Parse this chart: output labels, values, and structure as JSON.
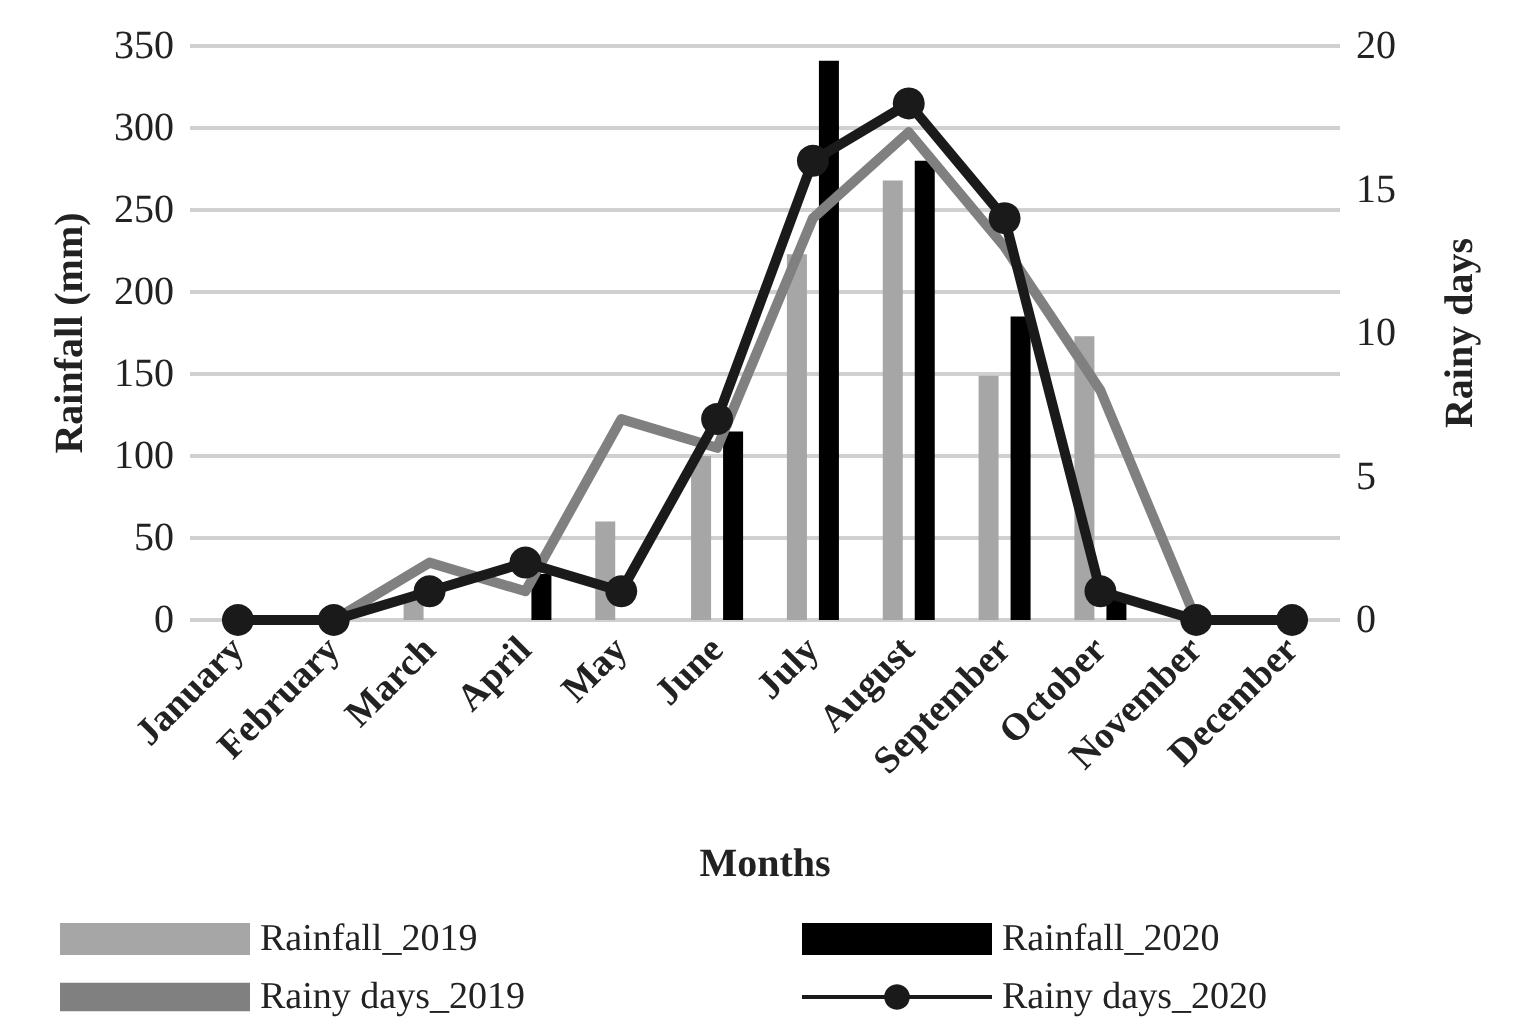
{
  "chart_data": {
    "type": "bar",
    "xlabel": "Months",
    "ylabel": "Rainfall (mm)",
    "y2label": "Rainy days",
    "categories": [
      "January",
      "February",
      "March",
      "April",
      "May",
      "June",
      "July",
      "August",
      "September",
      "October",
      "November",
      "December"
    ],
    "series": [
      {
        "name": "Rainfall_2019",
        "color": "#a6a6a6",
        "values": [
          0,
          0,
          15,
          0,
          60,
          100,
          223,
          268,
          149,
          173,
          0,
          0
        ]
      },
      {
        "name": "Rainfall_2020",
        "color": "#000000",
        "values": [
          0,
          0,
          0,
          28,
          0,
          115,
          341,
          280,
          185,
          15,
          0,
          0
        ]
      },
      {
        "name": "Rainy days_2019",
        "type": "line",
        "axis": "y2",
        "marker": "none",
        "color": "#808080",
        "values": [
          0,
          0,
          2,
          1,
          7,
          6,
          14,
          17,
          13,
          8,
          0,
          0
        ]
      },
      {
        "name": "Rainy days_2020",
        "type": "line",
        "axis": "y2",
        "marker": "circle",
        "color": "#1a1a1a",
        "values": [
          0,
          0,
          1,
          2,
          1,
          7,
          16,
          18,
          14,
          1,
          0,
          0
        ]
      }
    ],
    "ylim": [
      0,
      350
    ],
    "yticks": [
      0,
      50,
      100,
      150,
      200,
      250,
      300,
      350
    ],
    "y2lim": [
      0,
      20
    ],
    "y2ticks": [
      0,
      5,
      10,
      15,
      20
    ],
    "grid": "y",
    "legend": "bottom"
  }
}
